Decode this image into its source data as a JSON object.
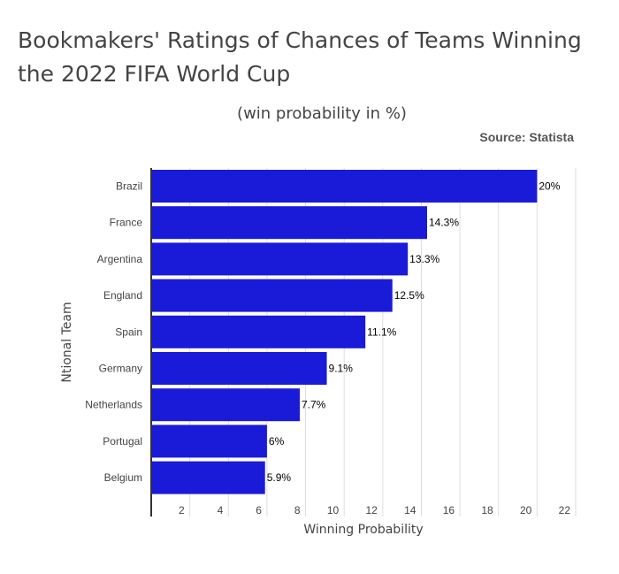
{
  "chart_data": {
    "type": "bar",
    "orientation": "horizontal",
    "title": "Bookmakers' Ratings of Chances of Teams Winning the 2022 FIFA World Cup",
    "title_lines": [
      "Bookmakers' Ratings of Chances of Teams Winning",
      "the 2022 FIFA World Cup"
    ],
    "subtitle": "(win probability in %)",
    "source": "Source: Statista",
    "xlabel": "Winning Probability",
    "ylabel": "Ntional Team",
    "categories": [
      "Brazil",
      "France",
      "Argentina",
      "England",
      "Spain",
      "Germany",
      "Netherlands",
      "Portugal",
      "Belgium"
    ],
    "values": [
      20,
      14.3,
      13.3,
      12.5,
      11.1,
      9.1,
      7.7,
      6,
      5.9
    ],
    "data_labels": [
      "20%",
      "14.3%",
      "13.3%",
      "12.5%",
      "11.1%",
      "9.1%",
      "7.7%",
      "6%",
      "5.9%"
    ],
    "xlim": [
      0,
      22
    ],
    "x_ticks": [
      2,
      4,
      6,
      8,
      10,
      12,
      14,
      16,
      18,
      20,
      22
    ],
    "grid": true,
    "bar_color": "#1a1ad9"
  }
}
